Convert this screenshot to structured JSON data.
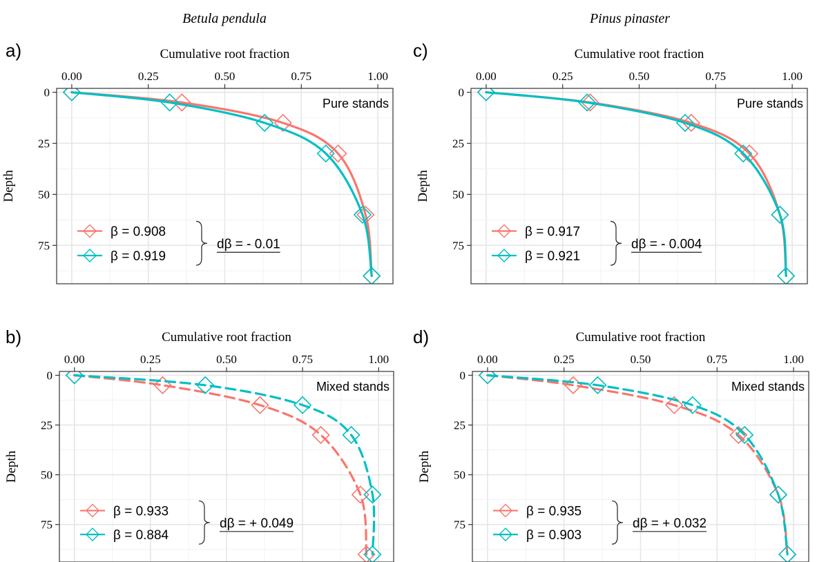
{
  "figure": {
    "column_titles": [
      "Betula pendula",
      "Pinus pinaster"
    ]
  },
  "colors": {
    "series_a": "#F8766D",
    "series_b": "#00BFC4",
    "grid": "#E6E6E6",
    "border": "#333333"
  },
  "chart_data": [
    {
      "panel": "a)",
      "type": "line",
      "xlabel": "Cumulative root fraction",
      "ylabel": "Depth",
      "xlim": [
        0,
        1
      ],
      "ylim": [
        0,
        90
      ],
      "y_reversed": true,
      "x_axis_position": "top",
      "xticks": [
        "0.00",
        "0.25",
        "0.50",
        "0.75",
        "1.00"
      ],
      "yticks": [
        "0",
        "25",
        "50",
        "75"
      ],
      "annotation": "Pure stands",
      "line_style": "solid",
      "dbeta_label": "dβ = - 0.01",
      "legend_position": "bottom-left",
      "series": [
        {
          "name": "β = 0.908",
          "beta": 0.908,
          "points": [
            [
              0,
              0
            ],
            [
              0.36,
              5
            ],
            [
              0.69,
              15
            ],
            [
              0.87,
              30
            ],
            [
              0.96,
              60
            ],
            [
              0.98,
              90
            ]
          ]
        },
        {
          "name": "β = 0.919",
          "beta": 0.919,
          "points": [
            [
              0,
              0
            ],
            [
              0.32,
              5
            ],
            [
              0.63,
              15
            ],
            [
              0.83,
              30
            ],
            [
              0.95,
              60
            ],
            [
              0.98,
              90
            ]
          ]
        }
      ]
    },
    {
      "panel": "b)",
      "type": "line",
      "xlabel": "Cumulative root fraction",
      "ylabel": "Depth",
      "xlim": [
        0,
        1
      ],
      "ylim": [
        0,
        90
      ],
      "y_reversed": true,
      "x_axis_position": "top",
      "xticks": [
        "0.00",
        "0.25",
        "0.50",
        "0.75",
        "1.00"
      ],
      "yticks": [
        "0",
        "25",
        "50",
        "75"
      ],
      "annotation": "Mixed stands",
      "line_style": "dashed",
      "dbeta_label": "dβ = + 0.049",
      "legend_position": "bottom-left",
      "series": [
        {
          "name": "β = 0.933",
          "beta": 0.933,
          "points": [
            [
              0,
              0
            ],
            [
              0.29,
              5
            ],
            [
              0.61,
              15
            ],
            [
              0.81,
              30
            ],
            [
              0.94,
              60
            ],
            [
              0.96,
              90
            ]
          ]
        },
        {
          "name": "β = 0.884",
          "beta": 0.884,
          "points": [
            [
              0,
              0
            ],
            [
              0.43,
              5
            ],
            [
              0.75,
              15
            ],
            [
              0.91,
              30
            ],
            [
              0.98,
              60
            ],
            [
              0.98,
              90
            ]
          ]
        }
      ]
    },
    {
      "panel": "c)",
      "type": "line",
      "xlabel": "Cumulative root fraction",
      "ylabel": "Depth",
      "xlim": [
        0,
        1
      ],
      "ylim": [
        0,
        90
      ],
      "y_reversed": true,
      "x_axis_position": "top",
      "xticks": [
        "0.00",
        "0.25",
        "0.50",
        "0.75",
        "1.00"
      ],
      "yticks": [
        "0",
        "25",
        "50",
        "75"
      ],
      "annotation": "Pure stands",
      "line_style": "solid",
      "dbeta_label": "dβ = - 0.004",
      "legend_position": "bottom-left",
      "series": [
        {
          "name": "β = 0.917",
          "beta": 0.917,
          "points": [
            [
              0,
              0
            ],
            [
              0.34,
              5
            ],
            [
              0.67,
              15
            ],
            [
              0.86,
              30
            ],
            [
              0.96,
              60
            ],
            [
              0.98,
              90
            ]
          ]
        },
        {
          "name": "β = 0.921",
          "beta": 0.921,
          "points": [
            [
              0,
              0
            ],
            [
              0.33,
              5
            ],
            [
              0.65,
              15
            ],
            [
              0.84,
              30
            ],
            [
              0.96,
              60
            ],
            [
              0.98,
              90
            ]
          ]
        }
      ]
    },
    {
      "panel": "d)",
      "type": "line",
      "xlabel": "Cumulative root fraction",
      "ylabel": "Depth",
      "xlim": [
        0,
        1
      ],
      "ylim": [
        0,
        90
      ],
      "y_reversed": true,
      "x_axis_position": "top",
      "xticks": [
        "0.00",
        "0.25",
        "0.50",
        "0.75",
        "1.00"
      ],
      "yticks": [
        "0",
        "25",
        "50",
        "75"
      ],
      "annotation": "Mixed stands",
      "line_style": "dashed",
      "dbeta_label": "dβ = + 0.032",
      "legend_position": "bottom-left",
      "series": [
        {
          "name": "β = 0.935",
          "beta": 0.935,
          "points": [
            [
              0,
              0
            ],
            [
              0.28,
              5
            ],
            [
              0.61,
              15
            ],
            [
              0.82,
              30
            ],
            [
              0.95,
              60
            ],
            [
              0.98,
              90
            ]
          ]
        },
        {
          "name": "β = 0.903",
          "beta": 0.903,
          "points": [
            [
              0,
              0
            ],
            [
              0.36,
              5
            ],
            [
              0.67,
              15
            ],
            [
              0.84,
              30
            ],
            [
              0.95,
              60
            ],
            [
              0.98,
              90
            ]
          ]
        }
      ]
    }
  ]
}
